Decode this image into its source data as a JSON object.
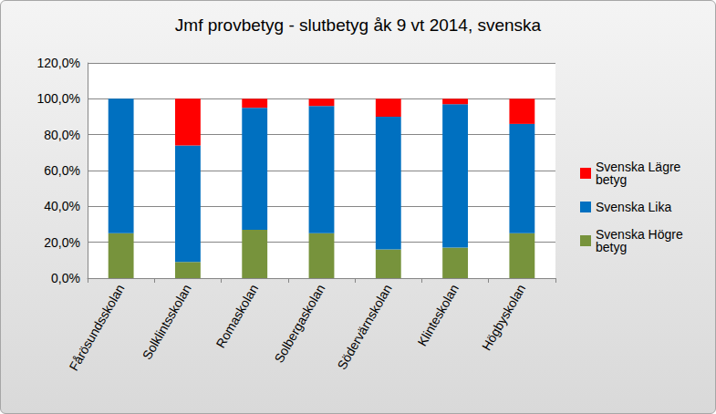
{
  "chart_data": {
    "type": "bar",
    "title": "Jmf provbetyg - slutbetyg åk 9 vt 2014, svenska",
    "categories": [
      "Fårösundsskolan",
      "Solklintsskolan",
      "Romaskolan",
      "Solbergaskolan",
      "Södervärnskolan",
      "Klinteskolan",
      "Högbyskolan"
    ],
    "series": [
      {
        "name": "Svenska Högre betyg",
        "color": "#77933c",
        "values": [
          25,
          9,
          27,
          25,
          16,
          17,
          25
        ]
      },
      {
        "name": "Svenska Lika",
        "color": "#0070c0",
        "values": [
          75,
          65,
          68,
          71,
          74,
          80,
          61
        ]
      },
      {
        "name": "Svenska Lägre betyg",
        "color": "#ff0000",
        "values": [
          0,
          26,
          5,
          4,
          10,
          3,
          14
        ]
      }
    ],
    "stacked": true,
    "ylim": [
      0,
      120
    ],
    "yticks": [
      {
        "value": 0,
        "label": "0,0%"
      },
      {
        "value": 20,
        "label": "20,0%"
      },
      {
        "value": 40,
        "label": "40,0%"
      },
      {
        "value": 60,
        "label": "60,0%"
      },
      {
        "value": 80,
        "label": "80,0%"
      },
      {
        "value": 100,
        "label": "100,0%"
      },
      {
        "value": 120,
        "label": "120,0%"
      }
    ],
    "grid": true,
    "legend": "right"
  }
}
